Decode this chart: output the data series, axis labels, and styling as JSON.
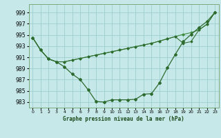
{
  "background_color": "#c6e8e8",
  "grid_color": "#9ecece",
  "line_color_dark": "#2d6a2d",
  "line_color_mid": "#3d8a3d",
  "xlabel": "Graphe pression niveau de la mer (hPa)",
  "ylim": [
    982,
    1000.5
  ],
  "xlim": [
    -0.5,
    23.5
  ],
  "yticks": [
    983,
    985,
    987,
    989,
    991,
    993,
    995,
    997,
    999
  ],
  "xticks": [
    0,
    1,
    2,
    3,
    4,
    5,
    6,
    7,
    8,
    9,
    10,
    11,
    12,
    13,
    14,
    15,
    16,
    17,
    18,
    19,
    20,
    21,
    22,
    23
  ],
  "s1": [
    994.5,
    992.3,
    990.7,
    990.2,
    989.3,
    988.0,
    987.0,
    985.2,
    983.1,
    983.0,
    983.4,
    983.4,
    983.4,
    983.5,
    984.4,
    984.5,
    986.4,
    989.1,
    991.5,
    993.8,
    995.1,
    996.3,
    997.4,
    999.0
  ],
  "s2": [
    994.5,
    992.3,
    990.7,
    990.2,
    990.2,
    990.5,
    990.8,
    991.1,
    991.4,
    991.7,
    992.0,
    992.3,
    992.6,
    992.9,
    993.2,
    993.5,
    993.9,
    994.3,
    994.7,
    995.1,
    995.4,
    995.9,
    996.9,
    999.0
  ],
  "s3": [
    994.5,
    992.3,
    990.7,
    990.2,
    990.2,
    990.5,
    990.8,
    991.1,
    991.4,
    991.7,
    992.0,
    992.3,
    992.6,
    992.9,
    993.2,
    993.5,
    993.9,
    994.3,
    994.7,
    993.5,
    993.8,
    995.9,
    996.9,
    999.0
  ]
}
